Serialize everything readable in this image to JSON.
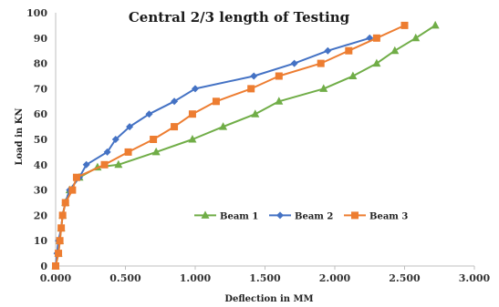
{
  "chart_data": {
    "type": "line",
    "title": "Central 2/3 length of Testing",
    "xlabel": "Deflection in MM",
    "ylabel": "Load in KN",
    "xlim": [
      0,
      3
    ],
    "ylim": [
      0,
      100
    ],
    "x_ticks": [
      "0.000",
      "0.500",
      "1.000",
      "1.500",
      "2.000",
      "2.500",
      "3.000"
    ],
    "y_ticks": [
      "0",
      "10",
      "20",
      "30",
      "40",
      "50",
      "60",
      "70",
      "80",
      "90",
      "100"
    ],
    "grid": false,
    "legend_position": "center-right",
    "series": [
      {
        "name": "Beam 1",
        "color": "#70ad47",
        "marker": "triangle",
        "points": [
          [
            0,
            0
          ],
          [
            0.02,
            5
          ],
          [
            0.03,
            10
          ],
          [
            0.04,
            15
          ],
          [
            0.05,
            20
          ],
          [
            0.07,
            25
          ],
          [
            0.1,
            30
          ],
          [
            0.17,
            35
          ],
          [
            0.3,
            39
          ],
          [
            0.45,
            40
          ],
          [
            0.72,
            45
          ],
          [
            0.98,
            50
          ],
          [
            1.2,
            55
          ],
          [
            1.43,
            60
          ],
          [
            1.6,
            65
          ],
          [
            1.92,
            70
          ],
          [
            2.13,
            75
          ],
          [
            2.3,
            80
          ],
          [
            2.43,
            85
          ],
          [
            2.58,
            90
          ],
          [
            2.72,
            95
          ]
        ]
      },
      {
        "name": "Beam 2",
        "color": "#4472c4",
        "marker": "diamond",
        "points": [
          [
            0,
            0
          ],
          [
            0.01,
            5
          ],
          [
            0.02,
            10
          ],
          [
            0.04,
            15
          ],
          [
            0.05,
            20
          ],
          [
            0.07,
            25
          ],
          [
            0.1,
            30
          ],
          [
            0.17,
            35
          ],
          [
            0.22,
            40
          ],
          [
            0.37,
            45
          ],
          [
            0.43,
            50
          ],
          [
            0.53,
            55
          ],
          [
            0.67,
            60
          ],
          [
            0.85,
            65
          ],
          [
            1.0,
            70
          ],
          [
            1.42,
            75
          ],
          [
            1.71,
            80
          ],
          [
            1.95,
            85
          ],
          [
            2.25,
            90
          ]
        ]
      },
      {
        "name": "Beam 3",
        "color": "#ed7d31",
        "marker": "square",
        "points": [
          [
            0,
            0
          ],
          [
            0.02,
            5
          ],
          [
            0.03,
            10
          ],
          [
            0.04,
            15
          ],
          [
            0.05,
            20
          ],
          [
            0.07,
            25
          ],
          [
            0.12,
            30
          ],
          [
            0.15,
            35
          ],
          [
            0.35,
            40
          ],
          [
            0.52,
            45
          ],
          [
            0.7,
            50
          ],
          [
            0.85,
            55
          ],
          [
            0.98,
            60
          ],
          [
            1.15,
            65
          ],
          [
            1.4,
            70
          ],
          [
            1.6,
            75
          ],
          [
            1.9,
            80
          ],
          [
            2.1,
            85
          ],
          [
            2.3,
            90
          ],
          [
            2.5,
            95
          ]
        ]
      }
    ]
  }
}
